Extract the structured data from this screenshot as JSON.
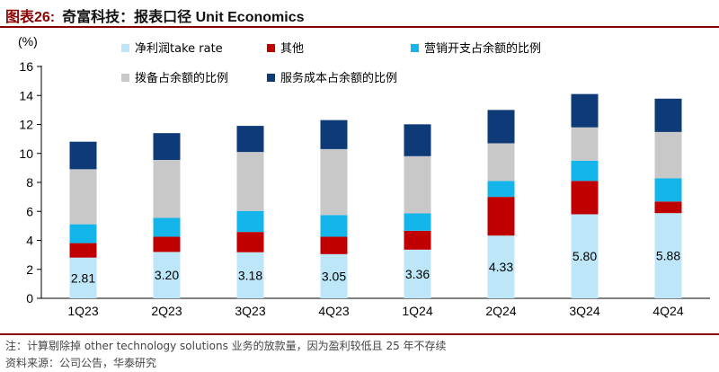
{
  "header": {
    "figure_label": "图表26:",
    "title": "奇富科技：报表口径 Unit Economics"
  },
  "footer": {
    "note": "注：计算剔除掉 other technology solutions 业务的放款量，因为盈利较低且 25 年不存续",
    "source": "资料来源：公司公告，华泰研究"
  },
  "chart_data": {
    "type": "bar",
    "stacked": true,
    "unit_label": "(%)",
    "categories": [
      "1Q23",
      "2Q23",
      "3Q23",
      "4Q23",
      "1Q24",
      "2Q24",
      "3Q24",
      "4Q24"
    ],
    "ylim": [
      0,
      16
    ],
    "yticks": [
      0,
      2,
      4,
      6,
      8,
      10,
      12,
      14,
      16
    ],
    "grid": false,
    "series": [
      {
        "name": "净利润take rate",
        "color": "#BDE7F8",
        "values": [
          2.81,
          3.2,
          3.18,
          3.05,
          3.36,
          4.33,
          5.8,
          5.88
        ]
      },
      {
        "name": "其他",
        "color": "#C00000",
        "values": [
          1.0,
          1.05,
          1.4,
          1.2,
          1.3,
          2.67,
          2.3,
          0.8
        ]
      },
      {
        "name": "营销开支占余额的比例",
        "color": "#13B5EA",
        "values": [
          1.3,
          1.3,
          1.45,
          1.5,
          1.2,
          1.1,
          1.4,
          1.6
        ]
      },
      {
        "name": "拨备占余额的比例",
        "color": "#C8C8C8",
        "values": [
          3.8,
          4.0,
          4.07,
          4.55,
          3.95,
          2.6,
          2.3,
          3.2
        ]
      },
      {
        "name": "服务成本占余额的比例",
        "color": "#0E3A78",
        "values": [
          1.9,
          1.85,
          1.8,
          2.0,
          2.2,
          2.3,
          2.3,
          2.3
        ]
      }
    ],
    "data_labels": [
      "2.81",
      "3.20",
      "3.18",
      "3.05",
      "3.36",
      "4.33",
      "5.80",
      "5.88"
    ],
    "legend": "top, two rows"
  }
}
